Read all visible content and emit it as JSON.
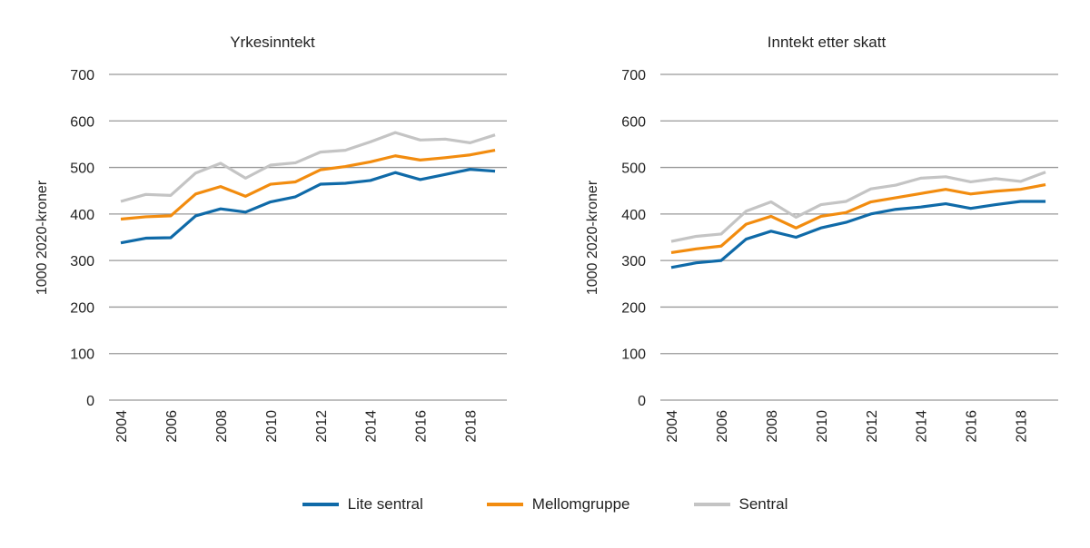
{
  "chart_data": [
    {
      "type": "line",
      "title": "Yrkesinntekt",
      "ylabel": "1000 2020-kroner",
      "ylim": [
        0,
        700
      ],
      "yticks": [
        0,
        100,
        200,
        300,
        400,
        500,
        600,
        700
      ],
      "x": [
        2004,
        2005,
        2006,
        2007,
        2008,
        2009,
        2010,
        2011,
        2012,
        2013,
        2014,
        2015,
        2016,
        2017,
        2018,
        2019
      ],
      "xticks": [
        2004,
        2006,
        2008,
        2010,
        2012,
        2014,
        2016,
        2018
      ],
      "grid": "horizontal",
      "series": [
        {
          "name": "Lite sentral",
          "color": "#0f6aa8",
          "values": [
            338,
            348,
            349,
            396,
            411,
            404,
            426,
            437,
            464,
            466,
            472,
            489,
            474,
            485,
            496,
            492
          ]
        },
        {
          "name": "Mellomgruppe",
          "color": "#f28c0f",
          "values": [
            389,
            394,
            396,
            443,
            459,
            438,
            464,
            469,
            495,
            502,
            512,
            525,
            516,
            521,
            527,
            537
          ]
        },
        {
          "name": "Sentral",
          "color": "#c4c4c4",
          "values": [
            427,
            442,
            440,
            488,
            509,
            477,
            505,
            510,
            533,
            537,
            555,
            575,
            559,
            561,
            553,
            570
          ]
        }
      ]
    },
    {
      "type": "line",
      "title": "Inntekt etter skatt",
      "ylabel": "1000 2020-kroner",
      "ylim": [
        0,
        700
      ],
      "yticks": [
        0,
        100,
        200,
        300,
        400,
        500,
        600,
        700
      ],
      "x": [
        2004,
        2005,
        2006,
        2007,
        2008,
        2009,
        2010,
        2011,
        2012,
        2013,
        2014,
        2015,
        2016,
        2017,
        2018,
        2019
      ],
      "xticks": [
        2004,
        2006,
        2008,
        2010,
        2012,
        2014,
        2016,
        2018
      ],
      "grid": "horizontal",
      "series": [
        {
          "name": "Lite sentral",
          "color": "#0f6aa8",
          "values": [
            285,
            295,
            300,
            346,
            363,
            350,
            370,
            382,
            400,
            410,
            415,
            422,
            412,
            420,
            427,
            427
          ]
        },
        {
          "name": "Mellomgruppe",
          "color": "#f28c0f",
          "values": [
            317,
            325,
            331,
            378,
            395,
            370,
            395,
            403,
            426,
            435,
            444,
            453,
            443,
            449,
            453,
            463
          ]
        },
        {
          "name": "Sentral",
          "color": "#c4c4c4",
          "values": [
            341,
            352,
            357,
            406,
            426,
            393,
            420,
            427,
            454,
            462,
            477,
            480,
            469,
            476,
            470,
            490
          ]
        }
      ]
    }
  ],
  "legend": {
    "placement": "bottom",
    "items": [
      "Lite sentral",
      "Mellomgruppe",
      "Sentral"
    ]
  }
}
